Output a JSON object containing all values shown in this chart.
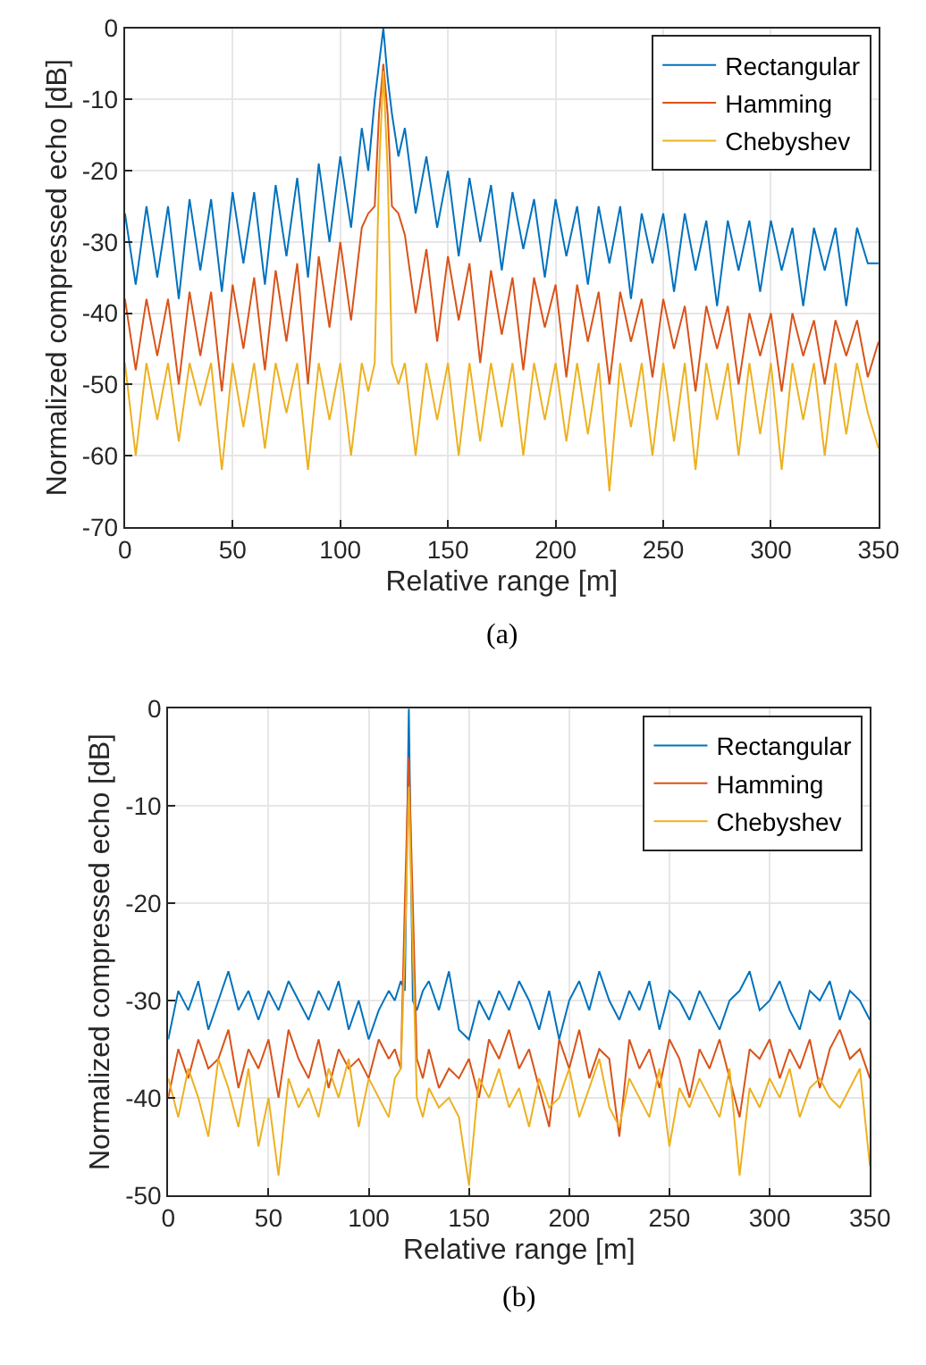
{
  "chart_data": [
    {
      "type": "line",
      "xlabel": "Relative range [m]",
      "ylabel": "Normalized compressed echo [dB]",
      "annotations": [
        "(a)"
      ],
      "xlim": [
        0,
        350
      ],
      "xticks": [
        0,
        50,
        100,
        150,
        200,
        250,
        300,
        350
      ],
      "ylim": [
        -70,
        0
      ],
      "yticks": [
        -70,
        -60,
        -50,
        -40,
        -30,
        -20,
        -10,
        0
      ],
      "grid": true,
      "legend": "top right",
      "marker": "none",
      "line_style": "solid",
      "x": [
        0,
        5,
        10,
        15,
        20,
        25,
        30,
        35,
        40,
        45,
        50,
        55,
        60,
        65,
        70,
        75,
        80,
        85,
        90,
        95,
        100,
        105,
        110,
        113,
        116,
        118,
        120,
        122,
        124,
        127,
        130,
        135,
        140,
        145,
        150,
        155,
        160,
        165,
        170,
        175,
        180,
        185,
        190,
        195,
        200,
        205,
        210,
        215,
        220,
        225,
        230,
        235,
        240,
        245,
        250,
        255,
        260,
        265,
        270,
        275,
        280,
        285,
        290,
        295,
        300,
        305,
        310,
        315,
        320,
        325,
        330,
        335,
        340,
        345,
        350
      ],
      "series": [
        {
          "name": "Rectangular",
          "color": "#0072bd",
          "values": [
            -26,
            -36,
            -25,
            -35,
            -25,
            -38,
            -24,
            -34,
            -24,
            -37,
            -23,
            -33,
            -23,
            -36,
            -22,
            -32,
            -21,
            -35,
            -19,
            -30,
            -18,
            -28,
            -14,
            -20,
            -10,
            -5,
            0,
            -7,
            -12,
            -18,
            -14,
            -26,
            -18,
            -28,
            -20,
            -32,
            -21,
            -30,
            -22,
            -34,
            -23,
            -31,
            -24,
            -35,
            -24,
            -32,
            -25,
            -36,
            -25,
            -33,
            -25,
            -38,
            -26,
            -33,
            -26,
            -37,
            -26,
            -34,
            -27,
            -39,
            -27,
            -34,
            -27,
            -37,
            -27,
            -34,
            -28,
            -39,
            -28,
            -34,
            -28,
            -39,
            -28,
            -33,
            -33
          ]
        },
        {
          "name": "Hamming",
          "color": "#d95319",
          "values": [
            -38,
            -48,
            -38,
            -46,
            -38,
            -50,
            -37,
            -46,
            -37,
            -51,
            -36,
            -45,
            -35,
            -48,
            -34,
            -44,
            -33,
            -50,
            -32,
            -42,
            -30,
            -41,
            -28,
            -26,
            -25,
            -12,
            -5,
            -12,
            -25,
            -26,
            -29,
            -40,
            -31,
            -44,
            -32,
            -41,
            -33,
            -47,
            -34,
            -43,
            -35,
            -48,
            -35,
            -42,
            -36,
            -49,
            -36,
            -44,
            -37,
            -50,
            -37,
            -44,
            -38,
            -49,
            -38,
            -45,
            -39,
            -51,
            -39,
            -45,
            -39,
            -50,
            -40,
            -46,
            -40,
            -51,
            -40,
            -46,
            -41,
            -50,
            -41,
            -46,
            -41,
            -49,
            -44
          ]
        },
        {
          "name": "Chebyshev",
          "color": "#edb120",
          "values": [
            -47,
            -60,
            -47,
            -55,
            -47,
            -58,
            -47,
            -53,
            -47,
            -62,
            -47,
            -56,
            -47,
            -59,
            -47,
            -54,
            -47,
            -62,
            -47,
            -55,
            -47,
            -60,
            -47,
            -51,
            -47,
            -20,
            -6,
            -20,
            -47,
            -50,
            -47,
            -60,
            -47,
            -55,
            -47,
            -60,
            -47,
            -58,
            -47,
            -56,
            -47,
            -60,
            -47,
            -55,
            -47,
            -58,
            -47,
            -57,
            -47,
            -65,
            -47,
            -56,
            -47,
            -60,
            -47,
            -58,
            -47,
            -62,
            -47,
            -55,
            -47,
            -60,
            -47,
            -57,
            -47,
            -62,
            -47,
            -55,
            -47,
            -60,
            -47,
            -57,
            -47,
            -54,
            -59
          ]
        }
      ]
    },
    {
      "type": "line",
      "xlabel": "Relative range [m]",
      "ylabel": "Normalized compressed echo [dB]",
      "annotations": [
        "(b)"
      ],
      "xlim": [
        0,
        350
      ],
      "xticks": [
        0,
        50,
        100,
        150,
        200,
        250,
        300,
        350
      ],
      "ylim": [
        -50,
        0
      ],
      "yticks": [
        -50,
        -40,
        -30,
        -20,
        -10,
        0
      ],
      "grid": true,
      "legend": "top right",
      "marker": "none",
      "line_style": "solid",
      "x": [
        0,
        5,
        10,
        15,
        20,
        25,
        30,
        35,
        40,
        45,
        50,
        55,
        60,
        65,
        70,
        75,
        80,
        85,
        90,
        95,
        100,
        105,
        110,
        113,
        116,
        118,
        120,
        122,
        124,
        127,
        130,
        135,
        140,
        145,
        150,
        155,
        160,
        165,
        170,
        175,
        180,
        185,
        190,
        195,
        200,
        205,
        210,
        215,
        220,
        225,
        230,
        235,
        240,
        245,
        250,
        255,
        260,
        265,
        270,
        275,
        280,
        285,
        290,
        295,
        300,
        305,
        310,
        315,
        320,
        325,
        330,
        335,
        340,
        345,
        350
      ],
      "series": [
        {
          "name": "Rectangular",
          "color": "#0072bd",
          "values": [
            -34,
            -29,
            -31,
            -28,
            -33,
            -30,
            -27,
            -31,
            -29,
            -32,
            -29,
            -31,
            -28,
            -30,
            -32,
            -29,
            -31,
            -28,
            -33,
            -30,
            -34,
            -31,
            -29,
            -30,
            -28,
            -29,
            0,
            -30,
            -31,
            -29,
            -28,
            -31,
            -27,
            -33,
            -34,
            -30,
            -32,
            -29,
            -31,
            -28,
            -30,
            -33,
            -29,
            -34,
            -30,
            -28,
            -31,
            -27,
            -30,
            -32,
            -29,
            -31,
            -28,
            -33,
            -29,
            -30,
            -32,
            -29,
            -31,
            -33,
            -30,
            -29,
            -27,
            -31,
            -30,
            -28,
            -31,
            -33,
            -29,
            -30,
            -28,
            -32,
            -29,
            -30,
            -32
          ]
        },
        {
          "name": "Hamming",
          "color": "#d95319",
          "values": [
            -40,
            -35,
            -38,
            -34,
            -37,
            -36,
            -33,
            -39,
            -35,
            -37,
            -34,
            -40,
            -33,
            -36,
            -38,
            -34,
            -39,
            -35,
            -37,
            -36,
            -38,
            -34,
            -36,
            -35,
            -37,
            -20,
            -5,
            -20,
            -36,
            -38,
            -35,
            -39,
            -37,
            -38,
            -36,
            -40,
            -34,
            -36,
            -33,
            -37,
            -35,
            -39,
            -43,
            -34,
            -37,
            -33,
            -38,
            -35,
            -36,
            -44,
            -34,
            -37,
            -35,
            -39,
            -34,
            -36,
            -40,
            -35,
            -37,
            -34,
            -38,
            -42,
            -35,
            -36,
            -34,
            -38,
            -35,
            -37,
            -34,
            -39,
            -35,
            -33,
            -36,
            -35,
            -38
          ]
        },
        {
          "name": "Chebyshev",
          "color": "#edb120",
          "values": [
            -38,
            -42,
            -37,
            -40,
            -44,
            -36,
            -39,
            -43,
            -37,
            -45,
            -40,
            -48,
            -38,
            -41,
            -39,
            -42,
            -37,
            -40,
            -36,
            -43,
            -38,
            -40,
            -42,
            -38,
            -37,
            -25,
            -8,
            -25,
            -40,
            -42,
            -39,
            -41,
            -40,
            -42,
            -49,
            -38,
            -40,
            -37,
            -41,
            -39,
            -43,
            -38,
            -41,
            -40,
            -37,
            -42,
            -39,
            -36,
            -41,
            -43,
            -38,
            -40,
            -42,
            -37,
            -45,
            -39,
            -41,
            -38,
            -40,
            -42,
            -37,
            -48,
            -39,
            -41,
            -38,
            -40,
            -37,
            -42,
            -39,
            -38,
            -40,
            -41,
            -39,
            -37,
            -47
          ]
        }
      ]
    }
  ]
}
